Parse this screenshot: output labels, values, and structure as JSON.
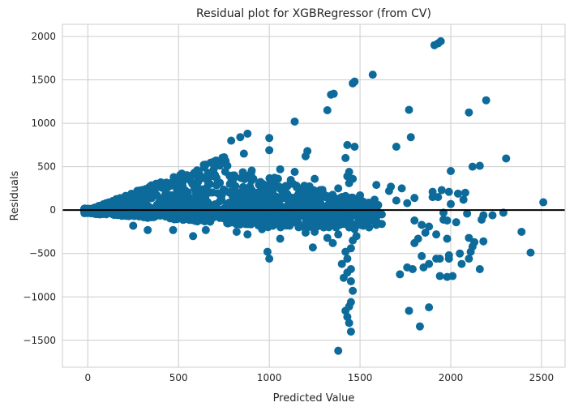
{
  "chart_data": {
    "type": "scatter",
    "title": "Residual plot for XGBRegressor (from CV)",
    "xlabel": "Predicted Value",
    "ylabel": "Residuals",
    "xlim": [
      -140,
      2630
    ],
    "ylim": [
      -1810,
      2140
    ],
    "xticks": [
      0,
      500,
      1000,
      1500,
      2000,
      2500
    ],
    "yticks": [
      -1500,
      -1000,
      -500,
      0,
      500,
      1000,
      1500,
      2000
    ],
    "xtick_labels": [
      "0",
      "500",
      "1000",
      "1500",
      "2000",
      "2500"
    ],
    "ytick_labels": [
      "−1500",
      "−1000",
      "−500",
      "0",
      "500",
      "1000",
      "1500",
      "2000"
    ],
    "grid": true,
    "zero_line": 0,
    "colors": {
      "points": "#0c6b9a",
      "zero_line": "#000000",
      "grid": "#cccccc"
    },
    "points": [
      [
        1930,
        1920
      ],
      [
        1945,
        1945
      ],
      [
        1910,
        1900
      ],
      [
        1570,
        1560
      ],
      [
        1470,
        1480
      ],
      [
        1460,
        1460
      ],
      [
        1355,
        1340
      ],
      [
        1340,
        1330
      ],
      [
        2195,
        1265
      ],
      [
        1320,
        1150
      ],
      [
        1770,
        1155
      ],
      [
        2100,
        1125
      ],
      [
        1140,
        1020
      ],
      [
        1780,
        840
      ],
      [
        880,
        880
      ],
      [
        1000,
        830
      ],
      [
        790,
        800
      ],
      [
        840,
        840
      ],
      [
        1000,
        690
      ],
      [
        1700,
        730
      ],
      [
        1430,
        750
      ],
      [
        1470,
        730
      ],
      [
        860,
        650
      ],
      [
        1210,
        680
      ],
      [
        1200,
        620
      ],
      [
        1420,
        600
      ],
      [
        2305,
        595
      ],
      [
        2120,
        500
      ],
      [
        2160,
        510
      ],
      [
        2000,
        450
      ],
      [
        1440,
        440
      ],
      [
        1060,
        470
      ],
      [
        900,
        390
      ],
      [
        1140,
        440
      ],
      [
        1430,
        390
      ],
      [
        1460,
        360
      ],
      [
        1440,
        310
      ],
      [
        1030,
        350
      ],
      [
        1250,
        360
      ],
      [
        1670,
        270
      ],
      [
        1730,
        250
      ],
      [
        1590,
        290
      ],
      [
        1660,
        220
      ],
      [
        1900,
        210
      ],
      [
        1930,
        150
      ],
      [
        1990,
        210
      ],
      [
        2040,
        190
      ],
      [
        2080,
        200
      ],
      [
        1950,
        230
      ],
      [
        1580,
        120
      ],
      [
        1760,
        80
      ],
      [
        1900,
        150
      ],
      [
        2070,
        120
      ],
      [
        2000,
        70
      ],
      [
        2510,
        90
      ],
      [
        1800,
        140
      ],
      [
        1700,
        110
      ],
      [
        2090,
        -40
      ],
      [
        1960,
        -30
      ],
      [
        2180,
        -60
      ],
      [
        2230,
        -60
      ],
      [
        1620,
        -50
      ],
      [
        1800,
        -120
      ],
      [
        1840,
        -170
      ],
      [
        1880,
        -190
      ],
      [
        1960,
        -110
      ],
      [
        1980,
        -120
      ],
      [
        2030,
        -140
      ],
      [
        2170,
        -110
      ],
      [
        2290,
        -30
      ],
      [
        1860,
        -260
      ],
      [
        1820,
        -330
      ],
      [
        1800,
        -380
      ],
      [
        1920,
        -280
      ],
      [
        1980,
        -330
      ],
      [
        2100,
        -320
      ],
      [
        2130,
        -370
      ],
      [
        2180,
        -360
      ],
      [
        2120,
        -420
      ],
      [
        2110,
        -480
      ],
      [
        2050,
        -500
      ],
      [
        1990,
        -520
      ],
      [
        2100,
        -560
      ],
      [
        2060,
        -620
      ],
      [
        1940,
        -560
      ],
      [
        1990,
        -560
      ],
      [
        1920,
        -560
      ],
      [
        1840,
        -530
      ],
      [
        1850,
        -660
      ],
      [
        1880,
        -620
      ],
      [
        1790,
        -680
      ],
      [
        1760,
        -660
      ],
      [
        1720,
        -740
      ],
      [
        1940,
        -760
      ],
      [
        1980,
        -770
      ],
      [
        2010,
        -760
      ],
      [
        2390,
        -250
      ],
      [
        2440,
        -490
      ],
      [
        2160,
        -680
      ],
      [
        1770,
        -1160
      ],
      [
        1880,
        -1120
      ],
      [
        1830,
        -1340
      ],
      [
        1420,
        -1160
      ],
      [
        1430,
        -1230
      ],
      [
        1440,
        -1300
      ],
      [
        1450,
        -1400
      ],
      [
        1380,
        -1620
      ],
      [
        1440,
        -1110
      ],
      [
        1450,
        -1060
      ],
      [
        1460,
        -930
      ],
      [
        1450,
        -820
      ],
      [
        1410,
        -780
      ],
      [
        1430,
        -720
      ],
      [
        1450,
        -680
      ],
      [
        1400,
        -620
      ],
      [
        1430,
        -560
      ],
      [
        1420,
        -480
      ],
      [
        1450,
        -440
      ],
      [
        1460,
        -350
      ],
      [
        1480,
        -300
      ],
      [
        990,
        -480
      ],
      [
        1000,
        -560
      ],
      [
        1060,
        -330
      ],
      [
        1200,
        -260
      ],
      [
        1240,
        -430
      ],
      [
        1320,
        -320
      ],
      [
        1350,
        -380
      ],
      [
        1380,
        -280
      ],
      [
        1250,
        -250
      ],
      [
        1550,
        -200
      ],
      [
        1600,
        -150
      ],
      [
        1520,
        -130
      ],
      [
        1470,
        -220
      ],
      [
        1620,
        -160
      ],
      [
        1300,
        -200
      ],
      [
        580,
        -300
      ],
      [
        650,
        -230
      ],
      [
        820,
        -250
      ],
      [
        880,
        -280
      ],
      [
        960,
        -220
      ],
      [
        1020,
        -180
      ],
      [
        470,
        -230
      ],
      [
        330,
        -230
      ],
      [
        250,
        -180
      ],
      [
        1320,
        160
      ],
      [
        1280,
        230
      ],
      [
        1380,
        250
      ],
      [
        1200,
        110
      ],
      [
        1100,
        180
      ],
      [
        980,
        230
      ],
      [
        1500,
        170
      ],
      [
        1550,
        50
      ],
      [
        1350,
        120
      ]
    ]
  }
}
